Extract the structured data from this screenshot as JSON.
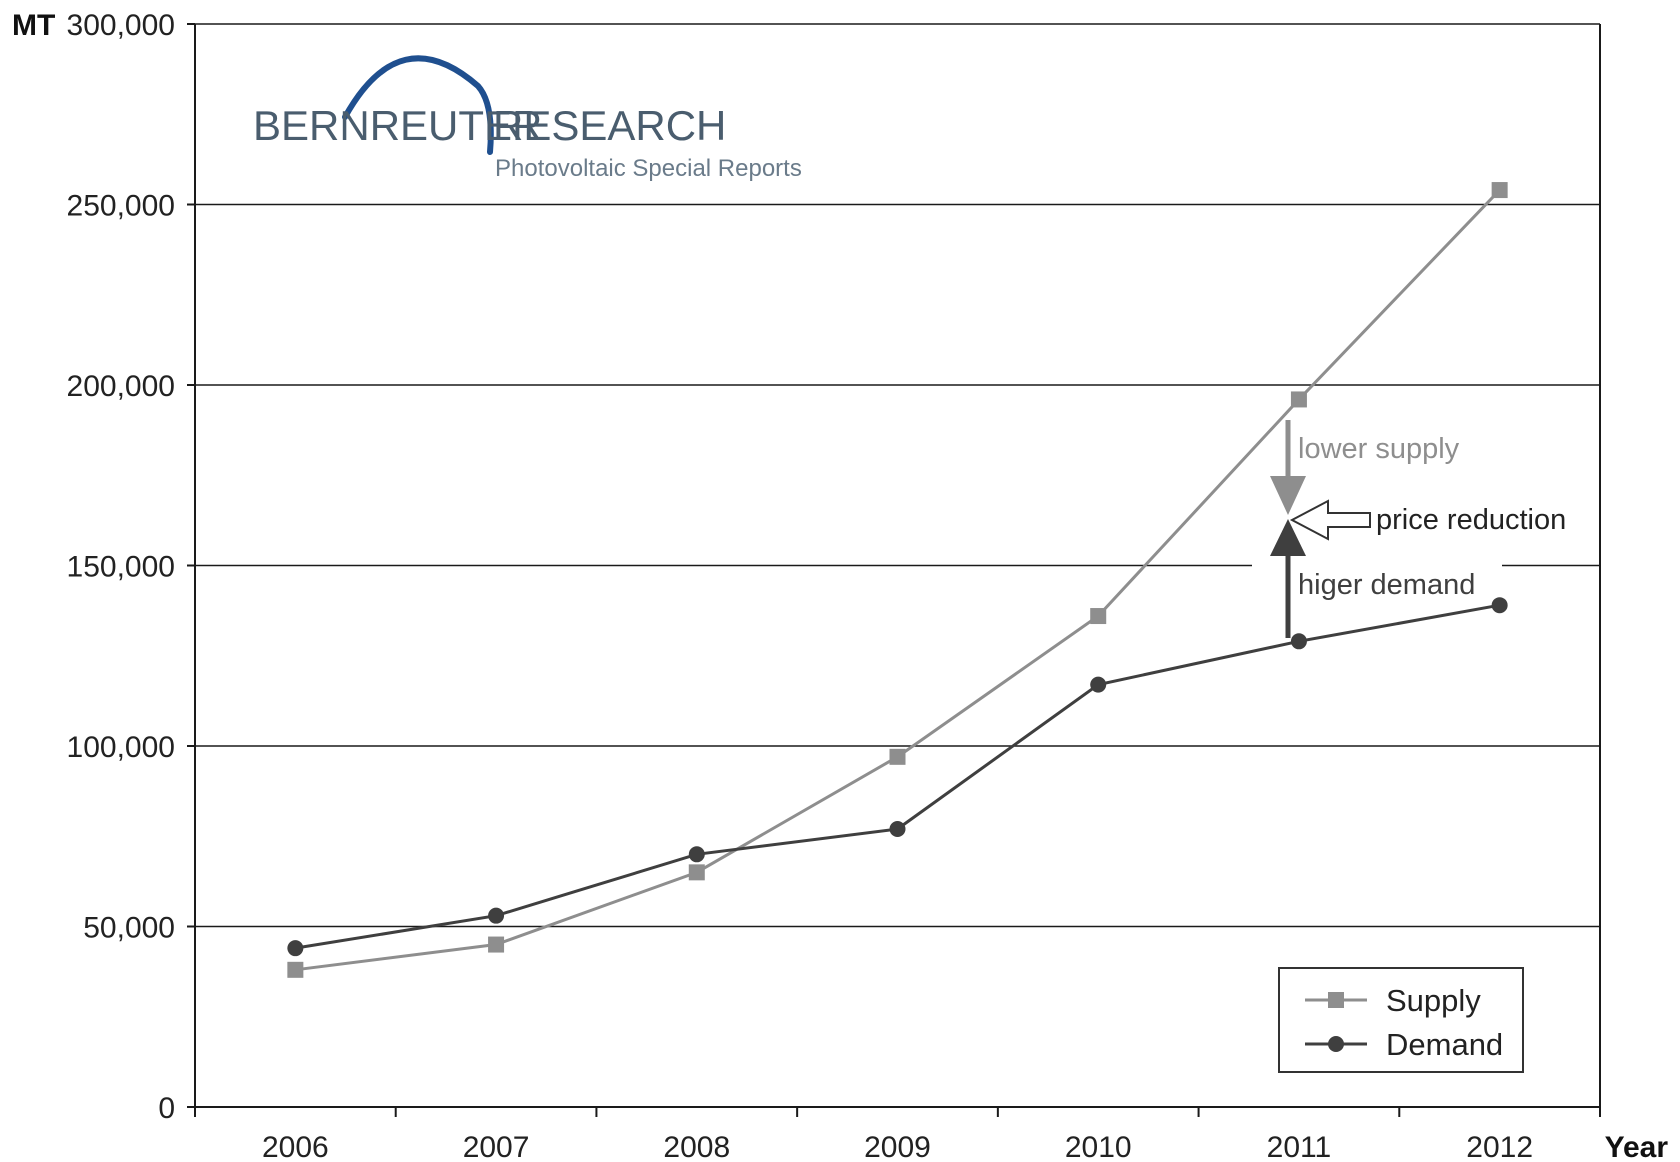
{
  "logo": {
    "left_word": "BERNREUTER",
    "right_word": "RESEARCH",
    "tagline": "Photovoltaic Special Reports"
  },
  "colors": {
    "supply": "#8e8e8e",
    "demand": "#3f3f3f",
    "grid": "#1a1a1a",
    "logo_arc": "#1f4f8f",
    "logo_text": "#4a5d6e"
  },
  "chart_data": {
    "type": "line",
    "title": "",
    "xlabel": "Year",
    "ylabel": "MT",
    "x": [
      2006,
      2007,
      2008,
      2009,
      2010,
      2011,
      2012
    ],
    "xtick_labels": [
      "2006",
      "2007",
      "2008",
      "2009",
      "2010",
      "2011",
      "2012"
    ],
    "ylim": [
      0,
      300000
    ],
    "yticks": [
      0,
      50000,
      100000,
      150000,
      200000,
      250000,
      300000
    ],
    "ytick_labels": [
      "0",
      "50,000",
      "100,000",
      "150,000",
      "200,000",
      "250,000",
      "300,000"
    ],
    "grid": "horizontal",
    "legend_position": "bottom-right",
    "series": [
      {
        "name": "Supply",
        "marker": "square",
        "values": [
          38000,
          45000,
          65000,
          97000,
          136000,
          196000,
          254000
        ]
      },
      {
        "name": "Demand",
        "marker": "circle",
        "values": [
          44000,
          53000,
          70000,
          77000,
          117000,
          129000,
          139000
        ]
      }
    ],
    "annotations": {
      "lower_supply": "lower supply",
      "price_reduction": "price reduction",
      "higher_demand": "higer demand"
    }
  }
}
